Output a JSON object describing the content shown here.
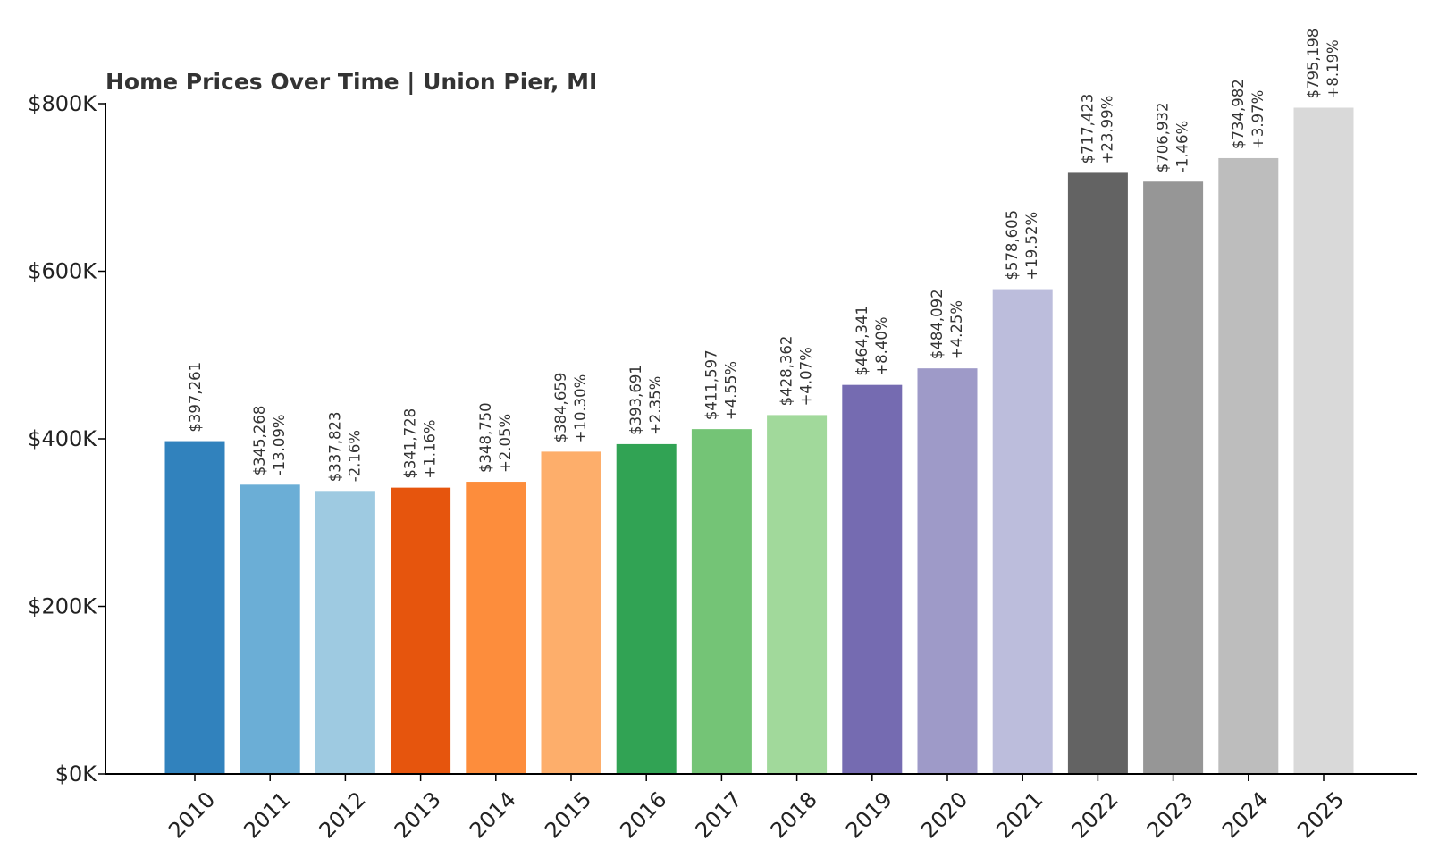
{
  "chart_data": {
    "type": "bar",
    "title": "Home Prices Over Time | Union Pier, MI",
    "xlabel": "",
    "ylabel": "",
    "ylim": [
      0,
      800000
    ],
    "yticks": [
      {
        "value": 0,
        "label": "$0K"
      },
      {
        "value": 200000,
        "label": "$200K"
      },
      {
        "value": 400000,
        "label": "$400K"
      },
      {
        "value": 600000,
        "label": "$600K"
      },
      {
        "value": 800000,
        "label": "$800K"
      }
    ],
    "grid": false,
    "categories": [
      "2010",
      "2011",
      "2012",
      "2013",
      "2014",
      "2015",
      "2016",
      "2017",
      "2018",
      "2019",
      "2020",
      "2021",
      "2022",
      "2023",
      "2024",
      "2025"
    ],
    "values": [
      397261,
      345268,
      337823,
      341728,
      348750,
      384659,
      393691,
      411597,
      428362,
      464341,
      484092,
      578605,
      717423,
      706932,
      734982,
      795198
    ],
    "value_labels": [
      "$397,261",
      "$345,268",
      "$337,823",
      "$341,728",
      "$348,750",
      "$384,659",
      "$393,691",
      "$411,597",
      "$428,362",
      "$464,341",
      "$484,092",
      "$578,605",
      "$717,423",
      "$706,932",
      "$734,982",
      "$795,198"
    ],
    "change_labels": [
      "",
      "-13.09%",
      "-2.16%",
      "+1.16%",
      "+2.05%",
      "+10.30%",
      "+2.35%",
      "+4.55%",
      "+4.07%",
      "+8.40%",
      "+4.25%",
      "+19.52%",
      "+23.99%",
      "-1.46%",
      "+3.97%",
      "+8.19%"
    ],
    "colors": [
      "#3182bd",
      "#6baed6",
      "#9ecae1",
      "#e6550d",
      "#fd8d3c",
      "#fdae6b",
      "#31a354",
      "#74c476",
      "#a1d99b",
      "#756bb1",
      "#9e9ac8",
      "#bcbddc",
      "#636363",
      "#969696",
      "#bdbdbd",
      "#d9d9d9"
    ]
  }
}
